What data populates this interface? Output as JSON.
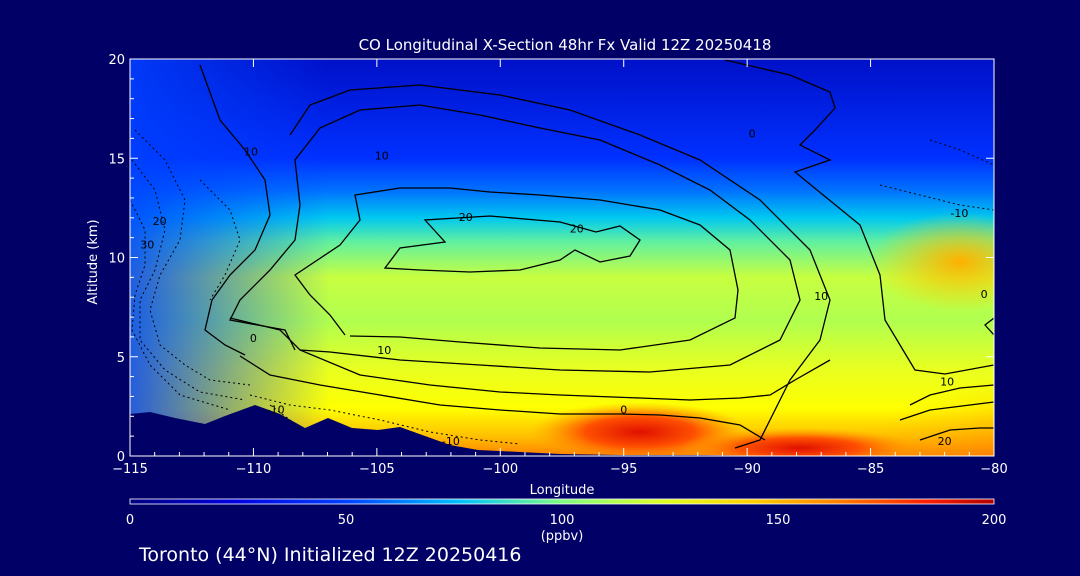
{
  "chart_data": {
    "type": "heatmap",
    "title": "CO Longitudinal X-Section 48hr  Fx Valid 12Z 20250418",
    "xlabel": "Longitude",
    "ylabel": "Altitude (km)",
    "xlim": [
      -115,
      -80
    ],
    "ylim": [
      0,
      20
    ],
    "x_ticks": [
      "-115",
      "-110",
      "-105",
      "-100",
      "-95",
      "-90",
      "-85",
      "-80"
    ],
    "y_ticks": [
      "0",
      "5",
      "10",
      "15",
      "20"
    ],
    "colorbar": {
      "min": 0,
      "max": 200,
      "ticks": [
        "0",
        "50",
        "100",
        "150",
        "200"
      ],
      "units": "(ppbv)",
      "colors": [
        "#000080",
        "#0000ff",
        "#0080ff",
        "#00e0ff",
        "#a0ff60",
        "#ffff00",
        "#ffa000",
        "#ff3000",
        "#b00000"
      ]
    },
    "contour_labels": [
      {
        "text": "0",
        "lon": -89.8,
        "alt": 16.2
      },
      {
        "text": "10",
        "lon": -110.1,
        "alt": 15.3
      },
      {
        "text": "10",
        "lon": -104.8,
        "alt": 15.1
      },
      {
        "text": "20",
        "lon": -113.8,
        "alt": 11.8
      },
      {
        "text": "30",
        "lon": -114.3,
        "alt": 10.6
      },
      {
        "text": "20",
        "lon": -101.4,
        "alt": 12.0
      },
      {
        "text": "20",
        "lon": -96.9,
        "alt": 11.4
      },
      {
        "text": "10",
        "lon": -87.0,
        "alt": 8.0
      },
      {
        "text": "0",
        "lon": -110.0,
        "alt": 5.9
      },
      {
        "text": "10",
        "lon": -104.7,
        "alt": 5.3
      },
      {
        "text": "0",
        "lon": -95.0,
        "alt": 2.3
      },
      {
        "text": "-10",
        "lon": -109.1,
        "alt": 2.3
      },
      {
        "text": "-10",
        "lon": -102.0,
        "alt": 0.7
      },
      {
        "text": "-10",
        "lon": -81.4,
        "alt": 12.2
      },
      {
        "text": "0",
        "lon": -80.4,
        "alt": 8.1
      },
      {
        "text": "10",
        "lon": -81.9,
        "alt": 3.7
      },
      {
        "text": "20",
        "lon": -82.0,
        "alt": 0.7
      }
    ]
  },
  "footer": {
    "text": "Toronto (44°N) Initialized 12Z 20250416"
  }
}
